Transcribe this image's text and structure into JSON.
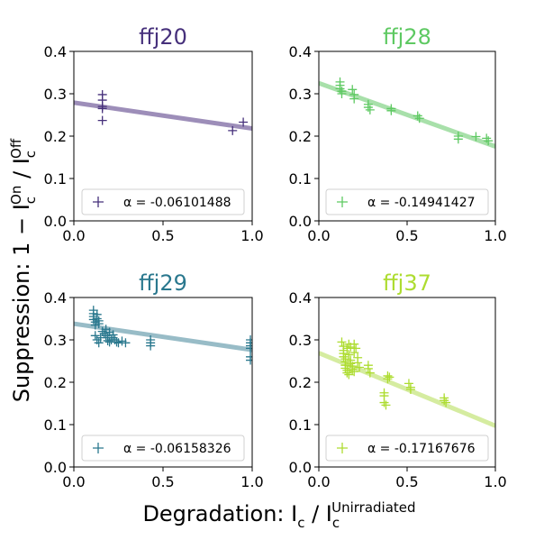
{
  "figure": {
    "ylabel_main": "Suppression: 1 − I",
    "ylabel_sub1": "c",
    "ylabel_sup1": "On",
    "ylabel_slash": " / I",
    "ylabel_sub2": "c",
    "ylabel_sup2": "Off",
    "xlabel_main": "Degradation: I",
    "xlabel_sub1": "c",
    "xlabel_slash": " / I",
    "xlabel_sub2": "c",
    "xlabel_sup2": "Unirradiated"
  },
  "chart_data": [
    {
      "type": "scatter",
      "title": "ffj20",
      "color": "#46307b",
      "line_color": "#9d8eb9",
      "xlim": [
        0.0,
        1.0
      ],
      "ylim": [
        0.0,
        0.4
      ],
      "xticks": [
        "0.0",
        "0.5",
        "1.0"
      ],
      "yticks": [
        "0.0",
        "0.1",
        "0.2",
        "0.3",
        "0.4"
      ],
      "legend": "α = -0.06101488",
      "legend_position": "lower-center",
      "fit": {
        "intercept": 0.279,
        "slope": -0.061
      },
      "points": [
        [
          0.16,
          0.298
        ],
        [
          0.16,
          0.285
        ],
        [
          0.16,
          0.27
        ],
        [
          0.16,
          0.265
        ],
        [
          0.16,
          0.237
        ],
        [
          0.89,
          0.213
        ],
        [
          0.95,
          0.233
        ]
      ]
    },
    {
      "type": "scatter",
      "title": "ffj28",
      "color": "#5ec962",
      "line_color": "#a8e0aa",
      "xlim": [
        0.0,
        1.0
      ],
      "ylim": [
        0.0,
        0.4
      ],
      "xticks": [
        "0.0",
        "0.5",
        "1.0"
      ],
      "yticks": [
        "0.0",
        "0.1",
        "0.2",
        "0.3",
        "0.4"
      ],
      "legend": "α = -0.14941427",
      "legend_position": "lower-center",
      "fit": {
        "intercept": 0.325,
        "slope": -0.1494
      },
      "points": [
        [
          0.12,
          0.328
        ],
        [
          0.12,
          0.32
        ],
        [
          0.12,
          0.312
        ],
        [
          0.13,
          0.306
        ],
        [
          0.13,
          0.3
        ],
        [
          0.19,
          0.31
        ],
        [
          0.2,
          0.298
        ],
        [
          0.2,
          0.288
        ],
        [
          0.28,
          0.275
        ],
        [
          0.28,
          0.268
        ],
        [
          0.29,
          0.262
        ],
        [
          0.41,
          0.265
        ],
        [
          0.41,
          0.26
        ],
        [
          0.56,
          0.248
        ],
        [
          0.57,
          0.242
        ],
        [
          0.79,
          0.2
        ],
        [
          0.79,
          0.193
        ],
        [
          0.89,
          0.199
        ],
        [
          0.95,
          0.195
        ],
        [
          0.96,
          0.189
        ]
      ]
    },
    {
      "type": "scatter",
      "title": "ffj29",
      "color": "#2a788e",
      "line_color": "#98bcc7",
      "xlim": [
        0.0,
        1.0
      ],
      "ylim": [
        0.0,
        0.4
      ],
      "xticks": [
        "0.0",
        "0.5",
        "1.0"
      ],
      "yticks": [
        "0.0",
        "0.1",
        "0.2",
        "0.3",
        "0.4"
      ],
      "legend": "α = -0.06158326",
      "legend_position": "lower-center",
      "fit": {
        "intercept": 0.338,
        "slope": -0.0616
      },
      "points": [
        [
          0.11,
          0.37
        ],
        [
          0.11,
          0.362
        ],
        [
          0.11,
          0.355
        ],
        [
          0.11,
          0.348
        ],
        [
          0.12,
          0.342
        ],
        [
          0.12,
          0.335
        ],
        [
          0.13,
          0.36
        ],
        [
          0.13,
          0.35
        ],
        [
          0.14,
          0.345
        ],
        [
          0.14,
          0.338
        ],
        [
          0.12,
          0.31
        ],
        [
          0.13,
          0.3
        ],
        [
          0.14,
          0.293
        ],
        [
          0.15,
          0.305
        ],
        [
          0.16,
          0.32
        ],
        [
          0.17,
          0.315
        ],
        [
          0.18,
          0.31
        ],
        [
          0.19,
          0.305
        ],
        [
          0.19,
          0.298
        ],
        [
          0.2,
          0.295
        ],
        [
          0.21,
          0.3
        ],
        [
          0.22,
          0.305
        ],
        [
          0.23,
          0.3
        ],
        [
          0.24,
          0.295
        ],
        [
          0.25,
          0.293
        ],
        [
          0.27,
          0.297
        ],
        [
          0.29,
          0.293
        ],
        [
          0.18,
          0.325
        ],
        [
          0.2,
          0.318
        ],
        [
          0.22,
          0.312
        ],
        [
          0.43,
          0.3
        ],
        [
          0.43,
          0.293
        ],
        [
          0.43,
          0.286
        ],
        [
          0.99,
          0.3
        ],
        [
          0.99,
          0.293
        ],
        [
          0.99,
          0.286
        ],
        [
          0.99,
          0.28
        ],
        [
          0.99,
          0.26
        ],
        [
          0.99,
          0.252
        ]
      ]
    },
    {
      "type": "scatter",
      "title": "ffj37",
      "color": "#addc30",
      "line_color": "#d5eca0",
      "xlim": [
        0.0,
        1.0
      ],
      "ylim": [
        0.0,
        0.4
      ],
      "xticks": [
        "0.0",
        "0.5",
        "1.0"
      ],
      "yticks": [
        "0.0",
        "0.1",
        "0.2",
        "0.3",
        "0.4"
      ],
      "legend": "α = -0.17167676",
      "legend_position": "lower-center",
      "fit": {
        "intercept": 0.269,
        "slope": -0.1717
      },
      "points": [
        [
          0.13,
          0.295
        ],
        [
          0.14,
          0.285
        ],
        [
          0.14,
          0.275
        ],
        [
          0.14,
          0.268
        ],
        [
          0.14,
          0.26
        ],
        [
          0.15,
          0.255
        ],
        [
          0.15,
          0.248
        ],
        [
          0.15,
          0.24
        ],
        [
          0.15,
          0.233
        ],
        [
          0.16,
          0.228
        ],
        [
          0.16,
          0.222
        ],
        [
          0.17,
          0.218
        ],
        [
          0.17,
          0.265
        ],
        [
          0.18,
          0.252
        ],
        [
          0.18,
          0.244
        ],
        [
          0.19,
          0.238
        ],
        [
          0.19,
          0.23
        ],
        [
          0.2,
          0.225
        ],
        [
          0.2,
          0.27
        ],
        [
          0.21,
          0.28
        ],
        [
          0.22,
          0.258
        ],
        [
          0.22,
          0.246
        ],
        [
          0.23,
          0.235
        ],
        [
          0.16,
          0.28
        ],
        [
          0.17,
          0.29
        ],
        [
          0.18,
          0.283
        ],
        [
          0.2,
          0.29
        ],
        [
          0.28,
          0.24
        ],
        [
          0.28,
          0.232
        ],
        [
          0.29,
          0.222
        ],
        [
          0.37,
          0.175
        ],
        [
          0.37,
          0.168
        ],
        [
          0.37,
          0.152
        ],
        [
          0.38,
          0.146
        ],
        [
          0.39,
          0.215
        ],
        [
          0.39,
          0.208
        ],
        [
          0.4,
          0.212
        ],
        [
          0.51,
          0.197
        ],
        [
          0.52,
          0.188
        ],
        [
          0.52,
          0.183
        ],
        [
          0.71,
          0.163
        ],
        [
          0.71,
          0.157
        ],
        [
          0.72,
          0.152
        ]
      ]
    }
  ]
}
